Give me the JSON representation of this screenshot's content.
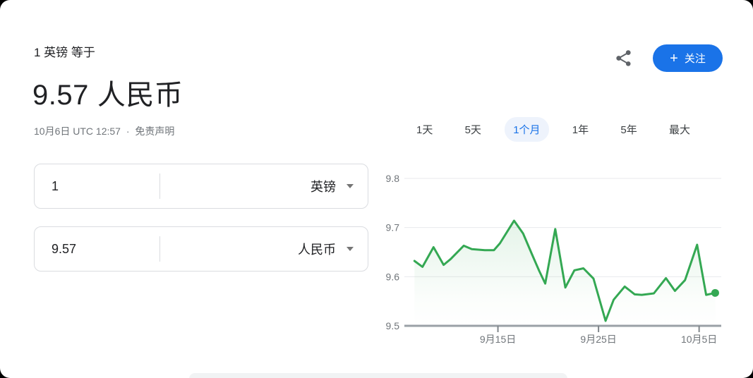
{
  "header": {
    "equals_line": "1 英镑 等于",
    "rate_value": "9.57",
    "rate_currency": "人民币",
    "timestamp": "10月6日 UTC 12:57",
    "separator": "·",
    "disclaimer": "免责声明"
  },
  "actions": {
    "share_icon": "share-icon",
    "follow_plus": "+",
    "follow_label": "关注",
    "follow_bg": "#1a73e8"
  },
  "converter": {
    "from": {
      "value": "1",
      "currency": "英镑",
      "caret_icon": "chevron-down-icon"
    },
    "to": {
      "value": "9.57",
      "currency": "人民币",
      "caret_icon": "chevron-down-icon"
    }
  },
  "tabs": [
    {
      "label": "1天",
      "active": false
    },
    {
      "label": "5天",
      "active": false
    },
    {
      "label": "1个月",
      "active": true
    },
    {
      "label": "1年",
      "active": false
    },
    {
      "label": "5年",
      "active": false
    },
    {
      "label": "最大",
      "active": false
    }
  ],
  "chart_data": {
    "type": "line",
    "x_note": "day index of period (9月15日=15, 9月25日=25, 10月5日=35)",
    "x": [
      6.7,
      7.5,
      8.6,
      9.6,
      10.3,
      11.6,
      12.4,
      13.7,
      14.6,
      15.2,
      16.6,
      17.5,
      18.4,
      19.1,
      19.7,
      20.7,
      21.7,
      22.6,
      23.5,
      24.5,
      25.7,
      26.5,
      27.6,
      28.6,
      29.3,
      30.5,
      31.7,
      32.6,
      33.6,
      34.8,
      35.7,
      36.6
    ],
    "values": [
      9.632,
      9.62,
      9.66,
      9.624,
      9.636,
      9.663,
      9.656,
      9.654,
      9.654,
      9.668,
      9.714,
      9.688,
      9.645,
      9.612,
      9.586,
      9.697,
      9.578,
      9.613,
      9.617,
      9.596,
      9.51,
      9.553,
      9.58,
      9.564,
      9.563,
      9.566,
      9.597,
      9.571,
      9.593,
      9.665,
      9.563,
      9.567
    ],
    "xlim": [
      5.7,
      37.2
    ],
    "ylim": [
      9.5,
      9.8
    ],
    "yticks": [
      {
        "value": 9.5,
        "label": "9.5"
      },
      {
        "value": 9.6,
        "label": "9.6"
      },
      {
        "value": 9.7,
        "label": "9.7"
      },
      {
        "value": 9.8,
        "label": "9.8"
      }
    ],
    "xticks": [
      {
        "day": 15,
        "label": "9月15日"
      },
      {
        "day": 25,
        "label": "9月25日"
      },
      {
        "day": 35,
        "label": "10月5日"
      }
    ],
    "grid": true,
    "legend": "none",
    "line_color": "#34a853",
    "fill_color": "#34a853",
    "fill_opacity_top": 0.13,
    "axis_color": "#9aa0a6",
    "tick_color": "#80868b",
    "grid_color": "#e8eaed",
    "label_color": "#70757a",
    "end_dot": true
  }
}
